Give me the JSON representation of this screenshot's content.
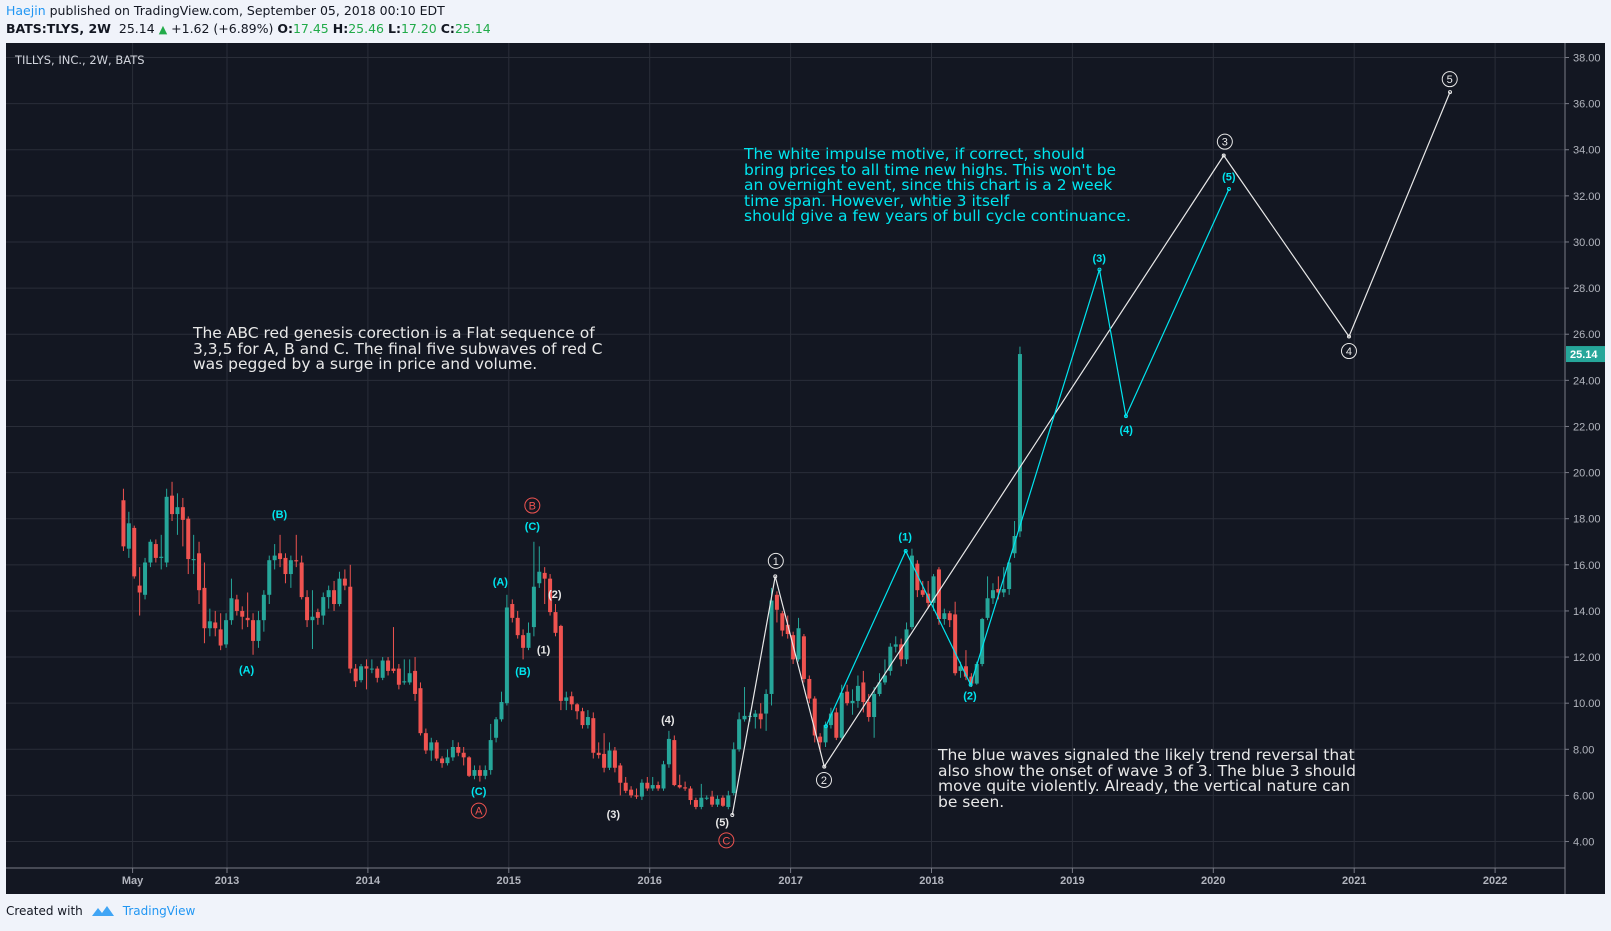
{
  "header": {
    "author": "Haejin",
    "published": "published on TradingView.com, September 05, 2018 00:10 EDT",
    "symbol": "BATS:TLYS, 2W",
    "last": "25.14",
    "change": "+1.62 (+6.89%)",
    "o_label": "O:",
    "o": "17.45",
    "h_label": "H:",
    "h": "25.46",
    "l_label": "L:",
    "l": "17.20",
    "c_label": "C:",
    "c": "25.14"
  },
  "chart_title": "TILLYS, INC., 2W, BATS",
  "notes": {
    "abc": "The ABC red genesis corection is a Flat sequence of\n3,3,5 for A, B and C. The final five subwaves of red C\nwas pegged by a surge in price and volume.",
    "impulse": "The white impulse motive, if correct, should\nbring prices to all time new highs. This won't be\nan overnight event, since this chart is a 2 week\ntime span. However, whtie 3 itself\nshould give a few years of bull cycle continuance.",
    "blue": "The blue waves signaled the likely trend reversal that\nalso show the onset of wave 3 of 3. The blue 3 should\nmove quite violently. Already, the vertical nature can\nbe seen."
  },
  "footer": {
    "created_with": "Created with",
    "brand": "TradingView"
  },
  "colors": {
    "up": "#26a69a",
    "down": "#ef5350",
    "cyan": "#00e5ef",
    "white": "#e8e8e8",
    "red_label": "#ef5350",
    "bg": "#131722",
    "grid": "#2a2e39",
    "axis_text": "#b2b5be"
  },
  "chart_data": {
    "type": "candlestick",
    "interval": "2W",
    "ylim": [
      3.0,
      39.0
    ],
    "y_ticks": [
      "4.00",
      "6.00",
      "8.00",
      "10.00",
      "12.00",
      "14.00",
      "16.00",
      "18.00",
      "20.00",
      "22.00",
      "24.00",
      "26.00",
      "28.00",
      "30.00",
      "32.00",
      "34.00",
      "36.00",
      "38.00"
    ],
    "x_ticks": [
      {
        "label": "May",
        "t": 2012.33
      },
      {
        "label": "2013",
        "t": 2013
      },
      {
        "label": "2014",
        "t": 2014
      },
      {
        "label": "2015",
        "t": 2015
      },
      {
        "label": "2016",
        "t": 2016
      },
      {
        "label": "2017",
        "t": 2017
      },
      {
        "label": "2018",
        "t": 2018
      },
      {
        "label": "2019",
        "t": 2019
      },
      {
        "label": "2020",
        "t": 2020
      },
      {
        "label": "2021",
        "t": 2021
      },
      {
        "label": "2022",
        "t": 2022
      }
    ],
    "first_bar_t": 2012.265,
    "bar_step_years": 0.03833,
    "last_price": "25.14",
    "last_price_value": 25.14,
    "candles_ohlc": [
      [
        18.8,
        19.3,
        16.6,
        16.8
      ],
      [
        16.7,
        18.3,
        16.3,
        17.8
      ],
      [
        17.6,
        17.7,
        15.4,
        15.5
      ],
      [
        15.1,
        15.9,
        13.8,
        14.8
      ],
      [
        14.7,
        16.3,
        14.5,
        16.1
      ],
      [
        16.1,
        17.1,
        15.9,
        17.0
      ],
      [
        16.9,
        17.1,
        16.1,
        16.3
      ],
      [
        16.3,
        17.3,
        15.8,
        16.35
      ],
      [
        16.1,
        19.3,
        15.9,
        18.95
      ],
      [
        19.0,
        19.6,
        17.9,
        18.2
      ],
      [
        18.2,
        19.1,
        17.3,
        18.5
      ],
      [
        18.5,
        18.9,
        16.8,
        17.95
      ],
      [
        18.0,
        18.1,
        15.6,
        16.25
      ],
      [
        16.2,
        17.3,
        15.6,
        16.25
      ],
      [
        16.5,
        17.0,
        14.3,
        14.9
      ],
      [
        15.0,
        16.1,
        12.6,
        13.25
      ],
      [
        13.25,
        14.1,
        12.9,
        13.55
      ],
      [
        13.5,
        14.0,
        12.9,
        13.25
      ],
      [
        13.2,
        13.9,
        12.3,
        12.5
      ],
      [
        12.55,
        13.9,
        12.4,
        13.6
      ],
      [
        13.6,
        15.4,
        13.4,
        14.55
      ],
      [
        14.5,
        14.7,
        13.8,
        14.0
      ],
      [
        14.0,
        14.2,
        13.2,
        13.75
      ],
      [
        13.7,
        14.8,
        13.3,
        13.6
      ],
      [
        13.6,
        13.9,
        12.1,
        12.7
      ],
      [
        12.7,
        14.0,
        12.4,
        13.6
      ],
      [
        13.6,
        14.9,
        13.1,
        14.7
      ],
      [
        14.7,
        16.4,
        14.3,
        16.2
      ],
      [
        16.2,
        16.9,
        15.8,
        16.4
      ],
      [
        16.5,
        17.3,
        15.9,
        16.25
      ],
      [
        16.3,
        16.5,
        15.2,
        15.6
      ],
      [
        15.6,
        16.4,
        15.0,
        16.2
      ],
      [
        16.2,
        17.3,
        15.9,
        16.15
      ],
      [
        16.1,
        16.4,
        14.5,
        14.6
      ],
      [
        14.6,
        14.9,
        13.3,
        13.6
      ],
      [
        13.6,
        14.9,
        12.35,
        13.75
      ],
      [
        13.95,
        14.1,
        13.4,
        13.7
      ],
      [
        13.8,
        14.8,
        13.4,
        14.6
      ],
      [
        14.6,
        15.1,
        14.1,
        14.9
      ],
      [
        14.9,
        15.3,
        14.0,
        14.3
      ],
      [
        14.3,
        15.7,
        14.2,
        15.4
      ],
      [
        15.4,
        15.8,
        14.9,
        15.1
      ],
      [
        15.05,
        16.0,
        11.3,
        11.5
      ],
      [
        11.5,
        11.7,
        10.7,
        10.95
      ],
      [
        11.0,
        11.7,
        10.9,
        11.6
      ],
      [
        11.6,
        11.9,
        10.6,
        11.5
      ],
      [
        11.5,
        11.9,
        11.3,
        11.5
      ],
      [
        11.5,
        11.6,
        10.9,
        11.1
      ],
      [
        11.1,
        12.0,
        11.0,
        11.85
      ],
      [
        11.85,
        12.0,
        11.2,
        11.4
      ],
      [
        11.5,
        13.3,
        11.3,
        11.4
      ],
      [
        11.5,
        11.7,
        10.6,
        10.8
      ],
      [
        10.9,
        11.9,
        10.8,
        10.95
      ],
      [
        10.9,
        11.9,
        10.8,
        11.3
      ],
      [
        11.4,
        12.0,
        10.1,
        10.4
      ],
      [
        10.65,
        10.9,
        8.6,
        8.7
      ],
      [
        8.7,
        8.9,
        7.8,
        7.95
      ],
      [
        7.95,
        8.5,
        7.5,
        8.3
      ],
      [
        8.3,
        8.4,
        7.5,
        7.6
      ],
      [
        7.6,
        7.7,
        7.2,
        7.4
      ],
      [
        7.4,
        8.0,
        7.3,
        7.65
      ],
      [
        7.65,
        8.4,
        7.5,
        8.1
      ],
      [
        8.1,
        8.3,
        7.7,
        7.85
      ],
      [
        7.85,
        8.1,
        7.3,
        7.65
      ],
      [
        7.65,
        7.7,
        6.8,
        6.85
      ],
      [
        6.85,
        7.3,
        6.7,
        7.1
      ],
      [
        7.1,
        7.3,
        6.6,
        6.85
      ],
      [
        6.85,
        7.3,
        6.7,
        7.1
      ],
      [
        7.1,
        9.1,
        6.9,
        8.4
      ],
      [
        8.5,
        9.4,
        8.3,
        9.3
      ],
      [
        9.3,
        10.5,
        9.2,
        10.05
      ],
      [
        10.0,
        14.7,
        9.9,
        14.15
      ],
      [
        14.3,
        14.5,
        13.5,
        13.7
      ],
      [
        13.7,
        14.0,
        12.8,
        12.95
      ],
      [
        12.95,
        13.2,
        11.9,
        12.4
      ],
      [
        12.4,
        13.5,
        12.3,
        13.05
      ],
      [
        13.3,
        17.0,
        12.9,
        15.05
      ],
      [
        15.2,
        16.8,
        15.0,
        15.7
      ],
      [
        15.65,
        15.9,
        14.3,
        15.4
      ],
      [
        15.4,
        15.6,
        13.8,
        13.95
      ],
      [
        13.95,
        14.3,
        12.9,
        13.05
      ],
      [
        13.35,
        13.4,
        9.7,
        10.1
      ],
      [
        10.1,
        10.5,
        9.7,
        10.25
      ],
      [
        10.3,
        10.5,
        9.7,
        9.95
      ],
      [
        9.95,
        10.0,
        9.3,
        9.65
      ],
      [
        9.65,
        9.8,
        8.9,
        9.05
      ],
      [
        9.05,
        9.7,
        8.9,
        9.4
      ],
      [
        9.35,
        9.6,
        7.6,
        7.85
      ],
      [
        7.85,
        8.3,
        7.6,
        7.75
      ],
      [
        7.8,
        8.7,
        7.0,
        7.2
      ],
      [
        7.2,
        8.3,
        7.1,
        7.95
      ],
      [
        7.95,
        8.1,
        7.0,
        7.2
      ],
      [
        7.3,
        7.4,
        6.0,
        6.55
      ],
      [
        6.55,
        6.8,
        6.1,
        6.2
      ],
      [
        6.25,
        6.4,
        5.9,
        6.0
      ],
      [
        6.0,
        6.3,
        5.85,
        5.95
      ],
      [
        5.95,
        6.7,
        5.8,
        6.55
      ],
      [
        6.55,
        6.8,
        6.2,
        6.3
      ],
      [
        6.3,
        6.8,
        6.2,
        6.45
      ],
      [
        6.45,
        6.6,
        6.2,
        6.3
      ],
      [
        6.3,
        7.5,
        6.2,
        7.35
      ],
      [
        7.35,
        8.8,
        7.2,
        8.45
      ],
      [
        8.4,
        8.6,
        6.4,
        6.45
      ],
      [
        6.45,
        6.9,
        6.3,
        6.35
      ],
      [
        6.35,
        6.6,
        6.2,
        6.3
      ],
      [
        6.3,
        6.4,
        5.6,
        5.8
      ],
      [
        5.8,
        5.9,
        5.4,
        5.5
      ],
      [
        5.5,
        6.5,
        5.4,
        5.9
      ],
      [
        5.9,
        6.0,
        5.8,
        5.9
      ],
      [
        5.95,
        6.2,
        5.5,
        5.6
      ],
      [
        5.6,
        6.0,
        5.5,
        5.85
      ],
      [
        5.9,
        6.0,
        5.5,
        5.55
      ],
      [
        5.5,
        6.2,
        5.4,
        6.0
      ],
      [
        6.1,
        8.3,
        6.0,
        8.0
      ],
      [
        8.0,
        9.6,
        7.9,
        9.3
      ],
      [
        9.3,
        10.7,
        9.2,
        9.45
      ],
      [
        9.45,
        9.6,
        9.2,
        9.45
      ],
      [
        9.4,
        9.7,
        8.9,
        9.55
      ],
      [
        9.55,
        10.0,
        8.9,
        9.3
      ],
      [
        9.55,
        10.6,
        8.8,
        10.4
      ],
      [
        10.4,
        15.0,
        9.9,
        14.45
      ],
      [
        14.7,
        14.85,
        13.5,
        14.05
      ],
      [
        13.9,
        14.0,
        12.9,
        13.15
      ],
      [
        13.4,
        13.8,
        12.8,
        13.0
      ],
      [
        12.95,
        13.1,
        11.7,
        11.9
      ],
      [
        11.9,
        13.7,
        11.8,
        13.25
      ],
      [
        12.9,
        13.0,
        10.9,
        11.05
      ],
      [
        11.05,
        11.2,
        10.0,
        10.2
      ],
      [
        10.2,
        10.3,
        8.3,
        8.6
      ],
      [
        8.55,
        8.7,
        7.9,
        8.3
      ],
      [
        8.3,
        9.2,
        8.1,
        9.05
      ],
      [
        9.05,
        9.8,
        8.9,
        9.55
      ],
      [
        9.6,
        9.8,
        8.4,
        8.5
      ],
      [
        8.5,
        10.8,
        8.4,
        10.45
      ],
      [
        10.5,
        10.8,
        9.9,
        10.0
      ],
      [
        10.0,
        10.6,
        9.5,
        10.1
      ],
      [
        10.1,
        11.2,
        9.8,
        10.75
      ],
      [
        10.9,
        11.4,
        9.6,
        10.05
      ],
      [
        10.05,
        10.4,
        9.2,
        9.4
      ],
      [
        9.4,
        10.7,
        8.5,
        10.4
      ],
      [
        10.4,
        11.3,
        10.3,
        10.9
      ],
      [
        10.9,
        11.9,
        10.8,
        11.2
      ],
      [
        11.4,
        12.6,
        11.2,
        12.45
      ],
      [
        12.45,
        12.9,
        12.2,
        12.55
      ],
      [
        12.55,
        12.8,
        11.6,
        11.9
      ],
      [
        11.9,
        13.5,
        11.7,
        13.2
      ],
      [
        13.3,
        16.7,
        13.2,
        16.4
      ],
      [
        16.05,
        16.2,
        14.6,
        14.9
      ],
      [
        14.9,
        15.3,
        14.6,
        14.7
      ],
      [
        14.75,
        15.3,
        14.1,
        14.35
      ],
      [
        14.35,
        15.6,
        14.0,
        15.5
      ],
      [
        15.8,
        15.9,
        13.4,
        13.65
      ],
      [
        13.65,
        14.1,
        13.4,
        13.9
      ],
      [
        13.9,
        14.0,
        13.3,
        13.6
      ],
      [
        13.85,
        14.4,
        11.2,
        11.3
      ],
      [
        11.4,
        11.8,
        11.1,
        11.6
      ],
      [
        11.6,
        12.3,
        11.0,
        11.15
      ],
      [
        11.15,
        11.3,
        10.7,
        10.85
      ],
      [
        10.85,
        11.8,
        10.8,
        11.7
      ],
      [
        11.7,
        13.7,
        11.6,
        13.65
      ],
      [
        13.7,
        15.5,
        13.6,
        14.55
      ],
      [
        14.55,
        15.2,
        14.3,
        14.9
      ],
      [
        14.95,
        15.5,
        14.5,
        14.8
      ],
      [
        14.8,
        15.9,
        14.6,
        14.95
      ],
      [
        14.95,
        16.2,
        14.7,
        16.1
      ],
      [
        16.5,
        17.9,
        16.3,
        17.25
      ],
      [
        17.45,
        25.46,
        17.2,
        25.14
      ]
    ],
    "wave_paths": [
      {
        "name": "white-impulse",
        "color": "white",
        "points": [
          [
            2016.586,
            5.15
          ],
          [
            2016.891,
            15.5
          ],
          [
            2017.239,
            7.25
          ],
          [
            2020.074,
            33.75
          ],
          [
            2020.963,
            25.9
          ],
          [
            2021.68,
            36.5
          ]
        ]
      },
      {
        "name": "blue-impulse",
        "color": "cyan",
        "points": [
          [
            2017.251,
            9.0
          ],
          [
            2017.817,
            16.6
          ],
          [
            2018.278,
            10.8
          ],
          [
            2019.192,
            28.8
          ],
          [
            2019.38,
            22.45
          ],
          [
            2020.111,
            32.3
          ]
        ]
      }
    ],
    "wave_labels": [
      {
        "text": "(B)",
        "style": "cyan",
        "t": 2013.373,
        "p": 18.2
      },
      {
        "text": "(A)",
        "style": "cyan",
        "t": 2013.139,
        "p": 11.45
      },
      {
        "text": "(C)",
        "style": "cyan",
        "t": 2014.787,
        "p": 6.2
      },
      {
        "text": "(A)",
        "style": "cyan",
        "t": 2014.94,
        "p": 15.27
      },
      {
        "text": "(B)",
        "style": "cyan",
        "t": 2015.1,
        "p": 11.4
      },
      {
        "text": "(C)",
        "style": "cyan",
        "t": 2015.167,
        "p": 17.68
      },
      {
        "text": "(1)",
        "style": "cyan",
        "t": 2017.813,
        "p": 17.23
      },
      {
        "text": "(2)",
        "style": "cyan",
        "t": 2018.273,
        "p": 10.33
      },
      {
        "text": "(3)",
        "style": "cyan",
        "t": 2019.19,
        "p": 29.3
      },
      {
        "text": "(4)",
        "style": "cyan",
        "t": 2019.382,
        "p": 21.87
      },
      {
        "text": "(5)",
        "style": "cyan",
        "t": 2020.11,
        "p": 32.83
      },
      {
        "text": "(2)",
        "style": "white",
        "t": 2015.327,
        "p": 14.73
      },
      {
        "text": "(1)",
        "style": "white",
        "t": 2015.247,
        "p": 12.33
      },
      {
        "text": "(3)",
        "style": "white",
        "t": 2015.742,
        "p": 5.2
      },
      {
        "text": "(4)",
        "style": "white",
        "t": 2016.129,
        "p": 9.3
      },
      {
        "text": "(5)",
        "style": "white",
        "t": 2016.515,
        "p": 4.85
      },
      {
        "text": "1",
        "style": "white-circle",
        "t": 2016.895,
        "p": 16.17
      },
      {
        "text": "2",
        "style": "white-circle",
        "t": 2017.237,
        "p": 6.67
      },
      {
        "text": "3",
        "style": "white-circle",
        "t": 2020.082,
        "p": 34.35
      },
      {
        "text": "4",
        "style": "white-circle",
        "t": 2020.963,
        "p": 25.27
      },
      {
        "text": "5",
        "style": "white-circle",
        "t": 2021.678,
        "p": 37.06
      },
      {
        "text": "A",
        "style": "red-circle",
        "t": 2014.787,
        "p": 5.34
      },
      {
        "text": "B",
        "style": "red-circle",
        "t": 2015.167,
        "p": 18.57
      },
      {
        "text": "C",
        "style": "red-circle",
        "t": 2016.544,
        "p": 4.05
      }
    ]
  }
}
